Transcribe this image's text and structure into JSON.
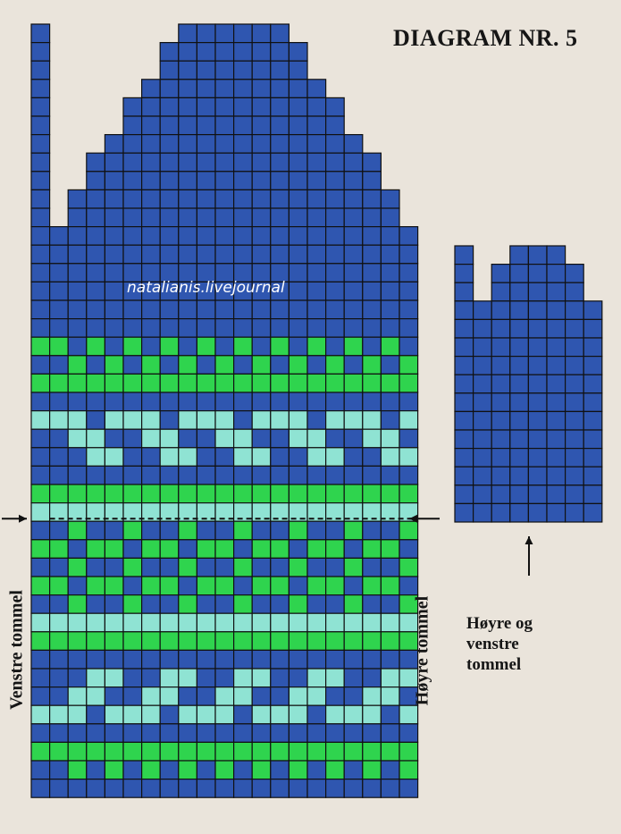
{
  "title": "DIAGRAM NR. 5",
  "watermark": "natalianis.livejournal",
  "left_thumb_label": "Venstre tommel",
  "right_thumb_label": "Høyre tommel",
  "thumb_note": [
    "Høyre og",
    "venstre",
    "tommel"
  ],
  "colors": {
    "background": "#eae4db",
    "blue": "#2f56b0",
    "green": "#2fd44e",
    "aqua": "#8fe3d3",
    "gridline": "#111111"
  },
  "mitten_chart": {
    "columns": 20,
    "rows": 42,
    "row_widths_from_top": [
      {
        "rows": 1,
        "from_col": 8,
        "to_col": 13
      },
      {
        "rows": 2,
        "from_col": 7,
        "to_col": 14
      },
      {
        "rows": 1,
        "from_col": 6,
        "to_col": 15
      },
      {
        "rows": 2,
        "from_col": 5,
        "to_col": 16
      },
      {
        "rows": 1,
        "from_col": 4,
        "to_col": 17
      },
      {
        "rows": 2,
        "from_col": 3,
        "to_col": 18
      },
      {
        "rows": 2,
        "from_col": 2,
        "to_col": 19
      },
      {
        "rows": 31,
        "from_col": 1,
        "to_col": 20
      }
    ],
    "thumb_strip": {
      "column": 0,
      "top_row": 0,
      "bottom_row": 41
    },
    "pattern_rows": [
      {
        "row": 17,
        "pattern": "GBGBGBGBGBGBGBGBGBGB"
      },
      {
        "row": 18,
        "pattern": "BGBGBGBGBGBGBGBGBGBG"
      },
      {
        "row": 19,
        "pattern": "GGGGGGGGGGGGGGGGGGGG"
      },
      {
        "row": 21,
        "pattern": "AABAAABAAABAAABAAABA"
      },
      {
        "row": 22,
        "pattern": "BAABBAABBAABBAABBAAB"
      },
      {
        "row": 23,
        "pattern": "BBAABBAABBAABBAABBAA"
      },
      {
        "row": 25,
        "pattern": "GGGGGGGGGGGGGGGGGGGG"
      },
      {
        "row": 26,
        "pattern": "AAAAAAAAAAAAAAAAAAAA"
      },
      {
        "row": 27,
        "pattern": "BGBBGBBGBBGBBGBBGBBG"
      },
      {
        "row": 28,
        "pattern": "GBGGBGGBGGBGGBGGBGGB"
      },
      {
        "row": 29,
        "pattern": "BGBBGBBGBBGBBGBBGBBG"
      },
      {
        "row": 30,
        "pattern": "GBGGBGGBGGBGGBGGBGGB"
      },
      {
        "row": 31,
        "pattern": "BGBBGBBGBBGBBGBBGBBG"
      },
      {
        "row": 32,
        "pattern": "AAAAAAAAAAAAAAAAAAAA"
      },
      {
        "row": 33,
        "pattern": "GGGGGGGGGGGGGGGGGGGG"
      },
      {
        "row": 35,
        "pattern": "BBAABBAABBAABBAABBAA"
      },
      {
        "row": 36,
        "pattern": "BAABBAABBAABBAABBAAB"
      },
      {
        "row": 37,
        "pattern": "AABAAABAAABAAABAAABA"
      },
      {
        "row": 39,
        "pattern": "GGGGGGGGGGGGGGGGGGGG"
      },
      {
        "row": 40,
        "pattern": "BGBGBGBGBGBGBGBGBGBG"
      }
    ],
    "dashed_line_row": 27
  },
  "thumb_chart": {
    "columns": 8,
    "rows": 15,
    "row_widths_from_top": [
      {
        "rows": 1,
        "col_ranges": [
          [
            0,
            0
          ],
          [
            3,
            5
          ]
        ]
      },
      {
        "rows": 2,
        "col_ranges": [
          [
            0,
            0
          ],
          [
            2,
            6
          ]
        ]
      },
      {
        "rows": 1,
        "col_ranges": [
          [
            0,
            7
          ]
        ]
      },
      {
        "rows": 11,
        "col_ranges": [
          [
            0,
            7
          ]
        ]
      }
    ]
  }
}
